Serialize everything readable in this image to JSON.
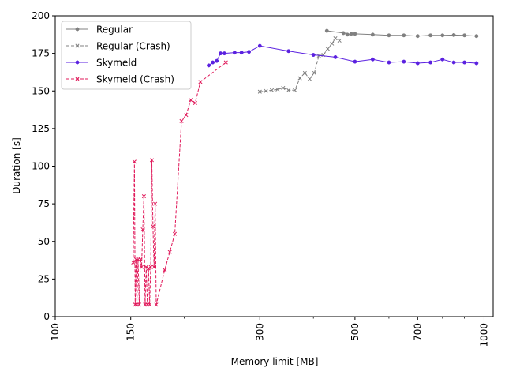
{
  "chart_data": {
    "type": "line",
    "xlabel": "Memory limit [MB]",
    "ylabel": "Duration [s]",
    "xscale": "log",
    "xlim": [
      100,
      1050
    ],
    "ylim": [
      0,
      200
    ],
    "xticks": [
      100,
      150,
      300,
      500,
      700,
      1000
    ],
    "xtick_labels": [
      "100",
      "150",
      "300",
      "500",
      "700",
      "1000"
    ],
    "xminor_ticks": [
      200,
      400,
      600,
      800,
      900
    ],
    "yticks": [
      0,
      25,
      50,
      75,
      100,
      125,
      150,
      175,
      200
    ],
    "ytick_labels": [
      "0",
      "25",
      "50",
      "75",
      "100",
      "125",
      "150",
      "175",
      "200"
    ],
    "legend": {
      "position": "top-left"
    },
    "series": [
      {
        "name": "Regular",
        "color": "#808080",
        "marker": "circle",
        "dash": "solid",
        "points": [
          [
            430,
            190
          ],
          [
            470,
            188.5
          ],
          [
            480,
            187.5
          ],
          [
            490,
            188
          ],
          [
            500,
            188
          ],
          [
            550,
            187.5
          ],
          [
            600,
            187
          ],
          [
            650,
            187
          ],
          [
            700,
            186.5
          ],
          [
            750,
            187
          ],
          [
            800,
            187
          ],
          [
            850,
            187.2
          ],
          [
            900,
            187
          ],
          [
            960,
            186.5
          ]
        ]
      },
      {
        "name": "Regular (Crash)",
        "color": "#808080",
        "marker": "x",
        "dash": "dashed",
        "points": [
          [
            300,
            149.5
          ],
          [
            310,
            150
          ],
          [
            320,
            150.5
          ],
          [
            330,
            151
          ],
          [
            340,
            152
          ],
          [
            350,
            150.5
          ],
          [
            362,
            150.5
          ],
          [
            372,
            158.5
          ],
          [
            382,
            162
          ],
          [
            392,
            158
          ],
          [
            402,
            162
          ],
          [
            412,
            173.5
          ],
          [
            422,
            174
          ],
          [
            432,
            178
          ],
          [
            442,
            181.5
          ],
          [
            450,
            185
          ],
          [
            460,
            183.5
          ]
        ]
      },
      {
        "name": "Skymeld",
        "color": "#5b21e0",
        "marker": "circle",
        "dash": "solid",
        "points": [
          [
            228,
            167
          ],
          [
            233,
            169
          ],
          [
            238,
            170
          ],
          [
            243,
            175
          ],
          [
            248,
            175
          ],
          [
            262,
            175.5
          ],
          [
            272,
            175.5
          ],
          [
            283,
            176
          ],
          [
            300,
            180
          ],
          [
            350,
            176.5
          ],
          [
            400,
            174
          ],
          [
            450,
            172.5
          ],
          [
            500,
            169.5
          ],
          [
            550,
            171
          ],
          [
            600,
            169
          ],
          [
            650,
            169.5
          ],
          [
            700,
            168.5
          ],
          [
            750,
            169
          ],
          [
            800,
            171
          ],
          [
            850,
            169
          ],
          [
            900,
            169
          ],
          [
            960,
            168.5
          ]
        ]
      },
      {
        "name": "Skymeld (Crash)",
        "color": "#e0195a",
        "marker": "x",
        "dash": "dashed",
        "points": [
          [
            152,
            36
          ],
          [
            153,
            103
          ],
          [
            153.6,
            8
          ],
          [
            154.3,
            38
          ],
          [
            155,
            8
          ],
          [
            156,
            38
          ],
          [
            157,
            8
          ],
          [
            158,
            38
          ],
          [
            159,
            33
          ],
          [
            160,
            58
          ],
          [
            161,
            80
          ],
          [
            162,
            8
          ],
          [
            163,
            33
          ],
          [
            164,
            8
          ],
          [
            165,
            32
          ],
          [
            166,
            8
          ],
          [
            167,
            33
          ],
          [
            168,
            104
          ],
          [
            169,
            60
          ],
          [
            170,
            33
          ],
          [
            171,
            75
          ],
          [
            172,
            8
          ],
          [
            180,
            31
          ],
          [
            185,
            43
          ],
          [
            190,
            55
          ],
          [
            197,
            130
          ],
          [
            202,
            134
          ],
          [
            207,
            144
          ],
          [
            212,
            142
          ],
          [
            218,
            156
          ],
          [
            250,
            169
          ]
        ]
      }
    ]
  }
}
